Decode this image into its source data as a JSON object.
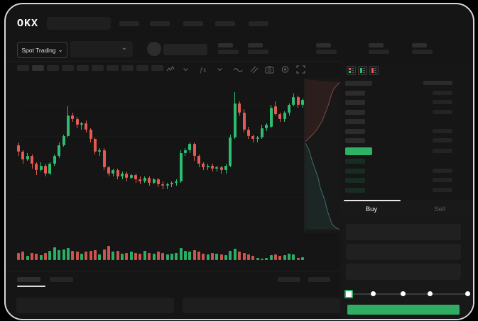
{
  "brand": {
    "logo_text": "OKX"
  },
  "ticker_bar": {
    "market_selector_label": "Spot Trading",
    "chevron": "⌄",
    "stat_placeholder_count": 5
  },
  "topbar": {
    "nav_placeholder_count": 5,
    "search_placeholder": ""
  },
  "toolbar": {
    "timeframe_placeholder_count": 10,
    "active_timeframe_index": 1,
    "icons": [
      "indicator-zigzag-icon",
      "chevron-down-icon",
      "fx-indicator-icon",
      "chevron-down-icon",
      "line-style-icon",
      "draw-tools-icon",
      "camera-icon",
      "settings-gear-icon",
      "fullscreen-icon"
    ]
  },
  "colors": {
    "green": "#2eb066",
    "green_bright": "#2ebd70",
    "red": "#e25a52",
    "app_bg": "#151515",
    "panel_bg": "#181818",
    "placeholder": "#2a2a2a",
    "text": "#e9e9e9",
    "muted": "#666666"
  },
  "orderbook": {
    "view_icons": [
      "book-both-sides-icon",
      "book-bids-only-icon",
      "book-asks-only-icon"
    ],
    "header": {
      "left_placeholder": true,
      "right_placeholder": true
    },
    "asks": [
      {
        "right_bar": true
      },
      {
        "right_bar": true
      },
      {
        "right_bar": true
      },
      {
        "right_bar": false
      },
      {
        "right_bar": true
      },
      {
        "right_bar": true
      }
    ],
    "last_price": {
      "highlighted": true,
      "color": "#2eb066",
      "right_bar": true
    },
    "bids": [
      {
        "right_bar": false
      },
      {
        "right_bar": true
      },
      {
        "right_bar": true
      },
      {
        "right_bar": true
      }
    ]
  },
  "trade_panel": {
    "tabs": [
      {
        "label": "Buy",
        "active": true
      },
      {
        "label": "Sell",
        "active": false
      }
    ],
    "input_count": 3,
    "slider": {
      "stop_count": 5,
      "active_stop": 0,
      "stop_fractions": [
        0,
        0.21,
        0.46,
        0.69,
        1
      ]
    },
    "submit_button": {
      "label": "",
      "color": "#2eae63"
    }
  },
  "bottom_bar": {
    "left_tab_count": 2,
    "active_left_tab": 0,
    "right_tab_count": 2,
    "panel_count": 2
  },
  "chart_data": {
    "type": "candlestick",
    "title": "",
    "xlabel": "",
    "ylabel": "",
    "note": "skeleton mockup chart - no axis tick labels visible; prices normalized 0-100",
    "ylim": [
      0,
      100
    ],
    "grid": "horizontal-faint",
    "candles": [
      [
        60,
        62,
        53,
        56
      ],
      [
        56,
        57,
        48,
        51
      ],
      [
        51,
        55,
        50,
        53
      ],
      [
        53,
        54,
        45,
        48
      ],
      [
        48,
        49,
        41,
        44
      ],
      [
        44,
        49,
        43,
        47
      ],
      [
        47,
        48,
        40,
        42
      ],
      [
        42,
        49,
        41,
        48
      ],
      [
        48,
        54,
        47,
        53
      ],
      [
        53,
        62,
        52,
        60
      ],
      [
        60,
        67,
        59,
        66
      ],
      [
        66,
        85,
        65,
        79
      ],
      [
        79,
        81,
        75,
        77
      ],
      [
        77,
        78,
        71,
        73
      ],
      [
        73,
        75,
        70,
        74
      ],
      [
        74,
        76,
        68,
        70
      ],
      [
        70,
        71,
        62,
        64
      ],
      [
        64,
        65,
        54,
        56
      ],
      [
        56,
        58,
        53,
        57
      ],
      [
        57,
        58,
        44,
        46
      ],
      [
        46,
        47,
        40,
        42
      ],
      [
        42,
        45,
        40,
        44
      ],
      [
        44,
        45,
        38,
        40
      ],
      [
        40,
        43,
        38,
        42
      ],
      [
        42,
        43,
        37,
        39
      ],
      [
        39,
        42,
        38,
        41
      ],
      [
        41,
        42,
        36,
        38
      ],
      [
        38,
        40,
        35,
        37
      ],
      [
        37,
        40,
        36,
        39
      ],
      [
        39,
        40,
        34,
        36
      ],
      [
        36,
        39,
        35,
        38
      ],
      [
        38,
        39,
        33,
        35
      ],
      [
        35,
        37,
        32,
        34
      ],
      [
        34,
        36,
        32,
        35
      ],
      [
        35,
        37,
        33,
        36
      ],
      [
        36,
        38,
        34,
        37
      ],
      [
        37,
        57,
        36,
        55
      ],
      [
        55,
        58,
        53,
        57
      ],
      [
        57,
        62,
        55,
        61
      ],
      [
        61,
        62,
        50,
        53
      ],
      [
        53,
        54,
        46,
        48
      ],
      [
        48,
        49,
        44,
        46
      ],
      [
        46,
        48,
        44,
        47
      ],
      [
        47,
        48,
        43,
        45
      ],
      [
        45,
        47,
        43,
        46
      ],
      [
        46,
        47,
        42,
        44
      ],
      [
        44,
        48,
        42,
        47
      ],
      [
        47,
        67,
        46,
        65
      ],
      [
        65,
        94,
        64,
        87
      ],
      [
        87,
        88,
        79,
        81
      ],
      [
        81,
        83,
        68,
        70
      ],
      [
        70,
        72,
        64,
        66
      ],
      [
        66,
        67,
        62,
        64
      ],
      [
        64,
        66,
        62,
        65
      ],
      [
        65,
        73,
        64,
        71
      ],
      [
        71,
        74,
        69,
        73
      ],
      [
        72,
        86,
        71,
        84
      ],
      [
        85,
        88,
        79,
        80
      ],
      [
        80,
        81,
        75,
        77
      ],
      [
        77,
        82,
        75,
        81
      ],
      [
        81,
        87,
        79,
        86
      ],
      [
        86,
        93,
        85,
        91
      ],
      [
        91,
        92,
        84,
        86
      ],
      [
        86,
        90,
        84,
        89
      ]
    ],
    "volume": [
      0.5,
      0.55,
      0.3,
      0.5,
      0.45,
      0.35,
      0.5,
      0.6,
      0.85,
      0.65,
      0.7,
      0.8,
      0.6,
      0.55,
      0.45,
      0.55,
      0.6,
      0.65,
      0.4,
      0.7,
      0.95,
      0.55,
      0.6,
      0.45,
      0.5,
      0.55,
      0.5,
      0.45,
      0.6,
      0.5,
      0.45,
      0.55,
      0.5,
      0.4,
      0.45,
      0.5,
      0.8,
      0.6,
      0.55,
      0.65,
      0.55,
      0.45,
      0.4,
      0.5,
      0.45,
      0.4,
      0.35,
      0.6,
      0.75,
      0.55,
      0.5,
      0.4,
      0.3,
      0.12,
      0.1,
      0.15,
      0.35,
      0.4,
      0.3,
      0.35,
      0.45,
      0.4,
      0.12,
      0.18
    ],
    "depth": {
      "asks": [
        [
          1,
          0.02
        ],
        [
          0.84,
          0.06
        ],
        [
          0.76,
          0.1
        ],
        [
          0.7,
          0.15
        ],
        [
          0.62,
          0.2
        ],
        [
          0.55,
          0.24
        ],
        [
          0.5,
          0.27
        ],
        [
          0.42,
          0.3
        ],
        [
          0.3,
          0.34
        ],
        [
          0.18,
          0.37
        ],
        [
          0.08,
          0.39
        ],
        [
          0,
          0.41
        ]
      ],
      "bids": [
        [
          0,
          0.42
        ],
        [
          0.1,
          0.46
        ],
        [
          0.15,
          0.5
        ],
        [
          0.22,
          0.55
        ],
        [
          0.3,
          0.6
        ],
        [
          0.38,
          0.65
        ],
        [
          0.42,
          0.7
        ],
        [
          0.5,
          0.75
        ],
        [
          0.58,
          0.8
        ],
        [
          0.63,
          0.85
        ],
        [
          0.7,
          0.9
        ],
        [
          0.78,
          0.95
        ],
        [
          0.9,
          0.975
        ],
        [
          1,
          0.985
        ]
      ]
    }
  }
}
